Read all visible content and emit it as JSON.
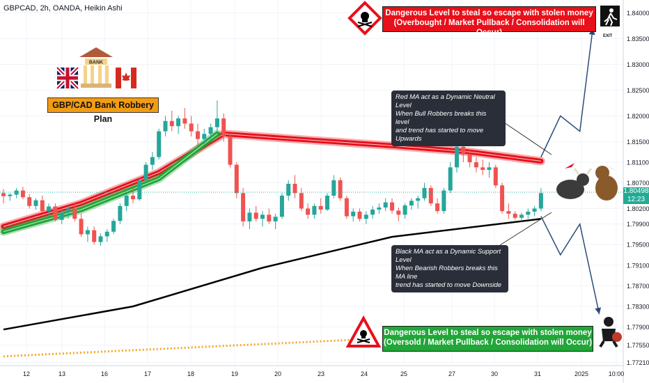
{
  "header": {
    "title": "GBPCAD, 2h, OANDA, Heikin Ashi"
  },
  "price_tag": {
    "price": "1.80498",
    "countdown": "12:23"
  },
  "annotations": {
    "top_warning_line1": "Dangerous Level to steal so escape with stolen money",
    "top_warning_line2": "(Overbought / Market Pullback / Consolidation will Occur)",
    "bottom_warning_line1": "Dangerous Level to steal so escape with stolen money",
    "bottom_warning_line2": "(Oversold / Market Pullback / Consolidation will Occur)",
    "plan_label": "GBP/CAD Bank Robbery Plan",
    "bank_sign": "BANK",
    "exit_label": "EXIT",
    "red_ma_note": [
      "Red MA act as a Dynamic Neutral Level",
      "When Bull Robbers breaks this level",
      "and trend has started to move Upwards"
    ],
    "black_ma_note": [
      "Black MA act as a Dynamic Support Level",
      "When Bearish Robbers breaks this MA line",
      "trend has started to move Downside"
    ]
  },
  "colors": {
    "bull": "#26a69a",
    "bear": "#ef5350",
    "red_ma": "#e8101a",
    "green_ma": "#21a638",
    "black_ma": "#000000",
    "orange_ma": "#f5a623",
    "arrow": "#2b4a7a",
    "grid": "#f0f3fa"
  },
  "chart_data": {
    "type": "candlestick",
    "ylim": [
      1.7715,
      1.8425
    ],
    "y_ticks": [
      "1.84000",
      "1.83500",
      "1.83000",
      "1.82500",
      "1.82000",
      "1.81500",
      "1.81100",
      "1.80700",
      "1.80200",
      "1.79900",
      "1.79500",
      "1.79100",
      "1.78700",
      "1.78300",
      "1.77900",
      "1.77550",
      "1.77210"
    ],
    "x_ticks": [
      "12",
      "13",
      "16",
      "17",
      "18",
      "19",
      "20",
      "23",
      "24",
      "25",
      "27",
      "30",
      "31",
      "2025",
      "10:00"
    ],
    "candles": [
      [
        0,
        1.805,
        1.8058,
        1.803,
        1.8044
      ],
      [
        1,
        1.8044,
        1.805,
        1.8035,
        1.8047
      ],
      [
        2,
        1.8047,
        1.806,
        1.804,
        1.8055
      ],
      [
        3,
        1.8055,
        1.8062,
        1.8038,
        1.8042
      ],
      [
        4,
        1.8042,
        1.8048,
        1.802,
        1.8025
      ],
      [
        5,
        1.8025,
        1.804,
        1.8018,
        1.8036
      ],
      [
        6,
        1.8036,
        1.8045,
        1.8012,
        1.8015
      ],
      [
        7,
        1.8015,
        1.803,
        1.8005,
        1.8024
      ],
      [
        8,
        1.8024,
        1.803,
        1.7995,
        1.7998
      ],
      [
        9,
        1.7998,
        1.802,
        1.799,
        1.8012
      ],
      [
        10,
        1.8012,
        1.8025,
        1.8,
        1.802
      ],
      [
        11,
        1.802,
        1.803,
        1.7995,
        1.8
      ],
      [
        12,
        1.8,
        1.801,
        1.7965,
        1.797
      ],
      [
        13,
        1.797,
        1.7985,
        1.7955,
        1.7978
      ],
      [
        14,
        1.7978,
        1.7985,
        1.795,
        1.7955
      ],
      [
        15,
        1.7955,
        1.7972,
        1.7948,
        1.7966
      ],
      [
        16,
        1.7966,
        1.798,
        1.7955,
        1.7975
      ],
      [
        17,
        1.7975,
        1.8,
        1.797,
        1.7996
      ],
      [
        18,
        1.7996,
        1.803,
        1.799,
        1.8025
      ],
      [
        19,
        1.8025,
        1.805,
        1.8015,
        1.8045
      ],
      [
        20,
        1.8045,
        1.806,
        1.803,
        1.8038
      ],
      [
        21,
        1.8038,
        1.808,
        1.8035,
        1.8075
      ],
      [
        22,
        1.8075,
        1.811,
        1.807,
        1.8105
      ],
      [
        23,
        1.8105,
        1.813,
        1.8095,
        1.812
      ],
      [
        24,
        1.812,
        1.8175,
        1.8115,
        1.817
      ],
      [
        25,
        1.817,
        1.82,
        1.816,
        1.819
      ],
      [
        26,
        1.819,
        1.821,
        1.817,
        1.818
      ],
      [
        27,
        1.818,
        1.82,
        1.8165,
        1.8195
      ],
      [
        28,
        1.8195,
        1.8215,
        1.8175,
        1.8185
      ],
      [
        29,
        1.8185,
        1.82,
        1.816,
        1.817
      ],
      [
        30,
        1.817,
        1.8185,
        1.814,
        1.8155
      ],
      [
        31,
        1.8155,
        1.8175,
        1.8145,
        1.8165
      ],
      [
        32,
        1.8165,
        1.8185,
        1.8155,
        1.8178
      ],
      [
        33,
        1.8178,
        1.823,
        1.817,
        1.8195
      ],
      [
        34,
        1.8195,
        1.8205,
        1.815,
        1.816
      ],
      [
        35,
        1.816,
        1.8165,
        1.81,
        1.8105
      ],
      [
        36,
        1.8105,
        1.811,
        1.804,
        1.805
      ],
      [
        37,
        1.805,
        1.806,
        1.7985,
        1.7995
      ],
      [
        38,
        1.7995,
        1.802,
        1.798,
        1.8012
      ],
      [
        39,
        1.8012,
        1.8025,
        1.7995,
        1.8
      ],
      [
        40,
        1.8,
        1.8015,
        1.7985,
        1.8008
      ],
      [
        41,
        1.8008,
        1.802,
        1.799,
        1.7995
      ],
      [
        42,
        1.7995,
        1.801,
        1.798,
        1.8004
      ],
      [
        43,
        1.8004,
        1.805,
        1.8,
        1.8045
      ],
      [
        44,
        1.8045,
        1.8075,
        1.8035,
        1.8068
      ],
      [
        45,
        1.8068,
        1.8085,
        1.804,
        1.805
      ],
      [
        46,
        1.805,
        1.806,
        1.8015,
        1.802
      ],
      [
        47,
        1.802,
        1.803,
        1.8,
        1.8008
      ],
      [
        48,
        1.8008,
        1.803,
        1.8,
        1.8025
      ],
      [
        49,
        1.8025,
        1.804,
        1.801,
        1.8018
      ],
      [
        50,
        1.8018,
        1.805,
        1.8015,
        1.8045
      ],
      [
        51,
        1.8045,
        1.8085,
        1.804,
        1.8075
      ],
      [
        52,
        1.8075,
        1.808,
        1.8035,
        1.804
      ],
      [
        53,
        1.804,
        1.8045,
        1.8,
        1.8005
      ],
      [
        54,
        1.8005,
        1.802,
        1.7995,
        1.8014
      ],
      [
        55,
        1.8014,
        1.802,
        1.7995,
        1.8
      ],
      [
        56,
        1.8,
        1.8015,
        1.799,
        1.8008
      ],
      [
        57,
        1.8008,
        1.8025,
        1.8,
        1.8018
      ],
      [
        58,
        1.8018,
        1.803,
        1.801,
        1.8022
      ],
      [
        59,
        1.8022,
        1.804,
        1.8015,
        1.8032
      ],
      [
        60,
        1.8032,
        1.804,
        1.801,
        1.8016
      ],
      [
        61,
        1.8016,
        1.8022,
        1.7995,
        1.8008
      ],
      [
        62,
        1.8008,
        1.803,
        1.8,
        1.8026
      ],
      [
        63,
        1.8026,
        1.804,
        1.8018,
        1.8035
      ],
      [
        64,
        1.8035,
        1.8045,
        1.802,
        1.804
      ],
      [
        65,
        1.804,
        1.807,
        1.8035,
        1.806
      ],
      [
        66,
        1.806,
        1.8065,
        1.8025,
        1.803
      ],
      [
        67,
        1.803,
        1.804,
        1.801,
        1.8015
      ],
      [
        68,
        1.8015,
        1.806,
        1.801,
        1.8055
      ],
      [
        69,
        1.8055,
        1.811,
        1.805,
        1.81
      ],
      [
        70,
        1.81,
        1.815,
        1.809,
        1.814
      ],
      [
        71,
        1.814,
        1.815,
        1.811,
        1.8125
      ],
      [
        72,
        1.8125,
        1.8135,
        1.81,
        1.811
      ],
      [
        73,
        1.811,
        1.812,
        1.809,
        1.81
      ],
      [
        74,
        1.81,
        1.8115,
        1.8085,
        1.8095
      ],
      [
        75,
        1.8095,
        1.811,
        1.808,
        1.81
      ],
      [
        76,
        1.81,
        1.8105,
        1.806,
        1.8065
      ],
      [
        77,
        1.8065,
        1.807,
        1.801,
        1.8015
      ],
      [
        78,
        1.8015,
        1.803,
        1.8,
        1.801
      ],
      [
        79,
        1.801,
        1.8015,
        1.7998,
        1.8002
      ],
      [
        80,
        1.8002,
        1.8012,
        1.7995,
        1.8008
      ],
      [
        81,
        1.8008,
        1.802,
        1.8,
        1.8014
      ],
      [
        82,
        1.8014,
        1.8025,
        1.8005,
        1.802
      ],
      [
        83,
        1.802,
        1.806,
        1.8015,
        1.805
      ]
    ],
    "ma_red": [
      [
        0,
        1.7985
      ],
      [
        12,
        1.803
      ],
      [
        24,
        1.809
      ],
      [
        34,
        1.8165
      ],
      [
        45,
        1.8155
      ],
      [
        60,
        1.8142
      ],
      [
        72,
        1.813
      ],
      [
        83,
        1.8112
      ]
    ],
    "ma_green": [
      [
        0,
        1.7975
      ],
      [
        12,
        1.8018
      ],
      [
        24,
        1.8078
      ],
      [
        33,
        1.8165
      ]
    ],
    "ma_black": [
      [
        0,
        1.7785
      ],
      [
        20,
        1.783
      ],
      [
        40,
        1.7905
      ],
      [
        60,
        1.7965
      ],
      [
        83,
        1.8
      ]
    ],
    "ma_orange": [
      [
        0,
        1.7733
      ],
      [
        54,
        1.7765
      ]
    ],
    "arrow_up_path": [
      [
        83,
        1.812
      ],
      [
        86,
        1.82
      ],
      [
        89,
        1.817
      ],
      [
        91,
        1.837
      ]
    ],
    "arrow_down_path": [
      [
        83,
        1.8005
      ],
      [
        86,
        1.793
      ],
      [
        89,
        1.799
      ],
      [
        92,
        1.7815
      ]
    ]
  }
}
